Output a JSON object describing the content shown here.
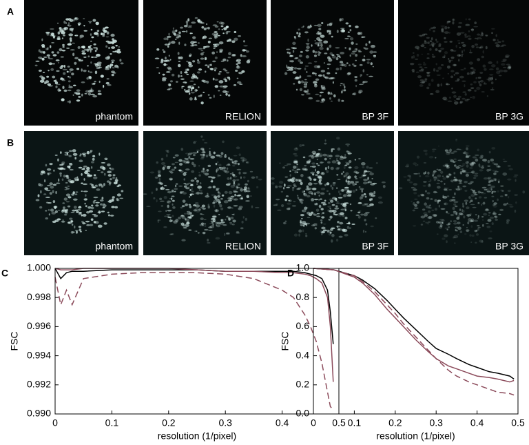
{
  "images": {
    "rows": [
      {
        "label": "A",
        "captions": [
          "phantom",
          "RELION",
          "BP 3F",
          "BP 3G"
        ]
      },
      {
        "label": "B",
        "captions": [
          "phantom",
          "RELION",
          "BP 3F",
          "BP 3G"
        ]
      }
    ]
  },
  "chart_data": [
    {
      "type": "line",
      "panel_label": "C",
      "ylabel": "FSC",
      "xlabel": "resolution (1/pixel)",
      "xlim": [
        0,
        0.5
      ],
      "xticks": [
        0,
        0.1,
        0.2,
        0.3,
        0.4,
        0.5
      ],
      "ylim": [
        0.99,
        1.0
      ],
      "yticks": [
        {
          "value": 0.99,
          "label": "0.990"
        },
        {
          "value": 0.992,
          "label": "0.992"
        },
        {
          "value": 0.994,
          "label": "0.994"
        },
        {
          "value": 0.996,
          "label": "0.996"
        },
        {
          "value": 0.998,
          "label": "0.998"
        },
        {
          "value": 1.0,
          "label": "1.000"
        }
      ],
      "x": [
        0,
        0.01,
        0.02,
        0.03,
        0.05,
        0.1,
        0.15,
        0.2,
        0.25,
        0.3,
        0.35,
        0.4,
        0.42,
        0.44,
        0.45,
        0.46,
        0.47,
        0.48,
        0.485,
        0.49
      ],
      "series": [
        {
          "color": "#000000",
          "style": "solid",
          "values": [
            1.0,
            0.9993,
            0.9997,
            0.9998,
            0.9998,
            0.9999,
            0.9999,
            0.9999,
            0.9999,
            0.9998,
            0.9998,
            0.9998,
            0.9998,
            0.9997,
            0.9996,
            0.9995,
            0.9993,
            0.9985,
            0.997,
            0.9948
          ]
        },
        {
          "color": "#8b4a5a",
          "style": "solid",
          "values": [
            1.0,
            0.9999,
            0.9999,
            0.9999,
            1.0,
            1.0,
            1.0,
            1.0,
            0.9999,
            0.9998,
            0.9998,
            0.9997,
            0.9997,
            0.9996,
            0.9995,
            0.9993,
            0.999,
            0.998,
            0.996,
            0.9922
          ]
        },
        {
          "color": "#8b4a5a",
          "style": "dashed",
          "values": [
            0.9994,
            0.9975,
            0.9985,
            0.9975,
            0.9993,
            0.9996,
            0.9997,
            0.9997,
            0.9997,
            0.9996,
            0.9993,
            0.9985,
            0.998,
            0.9968,
            0.996,
            0.995,
            0.9935,
            0.9915,
            0.9905,
            0.9903
          ]
        }
      ]
    },
    {
      "type": "line",
      "panel_label": "D",
      "ylabel": "FSC",
      "xlabel": "resolution (1/pixel)",
      "xlim": [
        0,
        0.5
      ],
      "xticks": [
        0,
        0.1,
        0.2,
        0.3,
        0.4,
        0.5
      ],
      "ylim": [
        0,
        1
      ],
      "yticks": [
        {
          "value": 0,
          "label": "0.0"
        },
        0.2,
        0.4,
        0.6,
        0.8,
        {
          "value": 1,
          "label": "1.0"
        }
      ],
      "x": [
        0,
        0.05,
        0.1,
        0.12,
        0.15,
        0.18,
        0.2,
        0.22,
        0.25,
        0.28,
        0.3,
        0.33,
        0.35,
        0.38,
        0.4,
        0.43,
        0.45,
        0.48,
        0.49
      ],
      "series": [
        {
          "color": "#000000",
          "style": "solid",
          "values": [
            1.0,
            0.99,
            0.95,
            0.92,
            0.86,
            0.78,
            0.72,
            0.66,
            0.58,
            0.5,
            0.45,
            0.41,
            0.38,
            0.34,
            0.32,
            0.29,
            0.28,
            0.26,
            0.24
          ]
        },
        {
          "color": "#8b4a5a",
          "style": "solid",
          "values": [
            1.0,
            0.99,
            0.94,
            0.9,
            0.82,
            0.72,
            0.66,
            0.6,
            0.51,
            0.43,
            0.38,
            0.33,
            0.31,
            0.28,
            0.26,
            0.25,
            0.24,
            0.22,
            0.23
          ]
        },
        {
          "color": "#8b4a5a",
          "style": "dashed",
          "values": [
            1.0,
            0.99,
            0.95,
            0.91,
            0.84,
            0.75,
            0.69,
            0.62,
            0.53,
            0.44,
            0.38,
            0.3,
            0.26,
            0.22,
            0.2,
            0.17,
            0.15,
            0.14,
            0.13
          ]
        }
      ]
    }
  ]
}
